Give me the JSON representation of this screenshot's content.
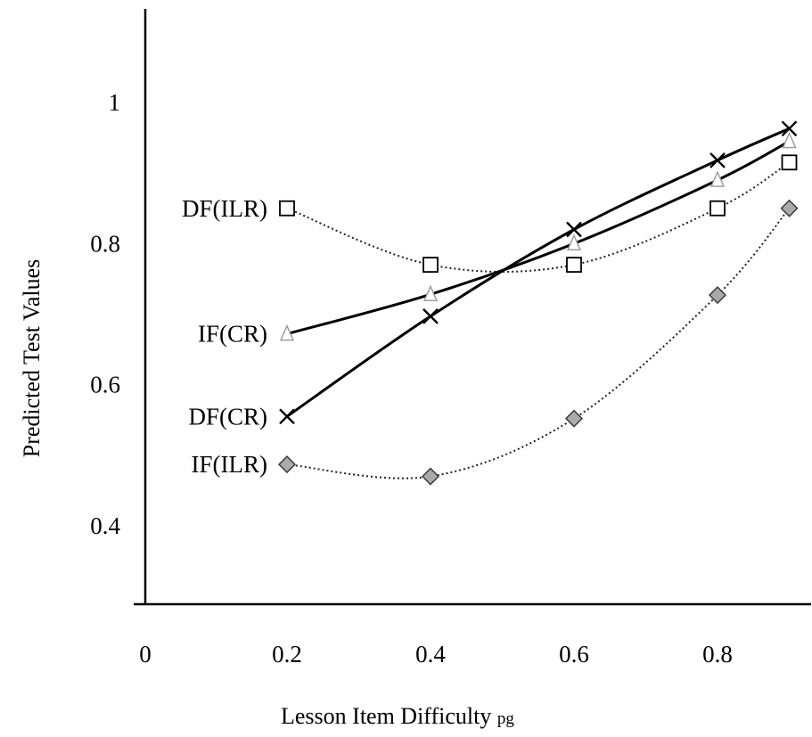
{
  "chart_data": {
    "type": "line",
    "xlabel": "Lesson Item Difficulty",
    "xlabel_subscript": "pg",
    "ylabel": "Predicted Test Values",
    "xlim": [
      0,
      0.95
    ],
    "ylim": [
      0.3,
      1.13
    ],
    "x_ticks": [
      "0",
      "0.2",
      "0.4",
      "0.6",
      "0.8"
    ],
    "y_ticks": [
      "0.4",
      "0.6",
      "0.8",
      "1"
    ],
    "grid": false,
    "legend": "inline labels at left of each series",
    "series": [
      {
        "name": "DF(ILR)",
        "marker": "square",
        "line": "dotted",
        "x": [
          0.2,
          0.4,
          0.6,
          0.8,
          0.9
        ],
        "y": [
          0.85,
          0.77,
          0.77,
          0.85,
          0.915
        ]
      },
      {
        "name": "IF(CR)",
        "marker": "triangle",
        "line": "solid",
        "x": [
          0.2,
          0.4,
          0.6,
          0.8,
          0.9
        ],
        "y": [
          0.672,
          0.728,
          0.8,
          0.89,
          0.945
        ]
      },
      {
        "name": "DF(CR)",
        "marker": "x",
        "line": "solid",
        "x": [
          0.2,
          0.4,
          0.6,
          0.8,
          0.9
        ],
        "y": [
          0.555,
          0.697,
          0.82,
          0.918,
          0.963
        ]
      },
      {
        "name": "IF(ILR)",
        "marker": "diamond",
        "line": "dotted",
        "x": [
          0.2,
          0.4,
          0.6,
          0.8,
          0.9
        ],
        "y": [
          0.487,
          0.47,
          0.552,
          0.727,
          0.85
        ]
      }
    ]
  }
}
